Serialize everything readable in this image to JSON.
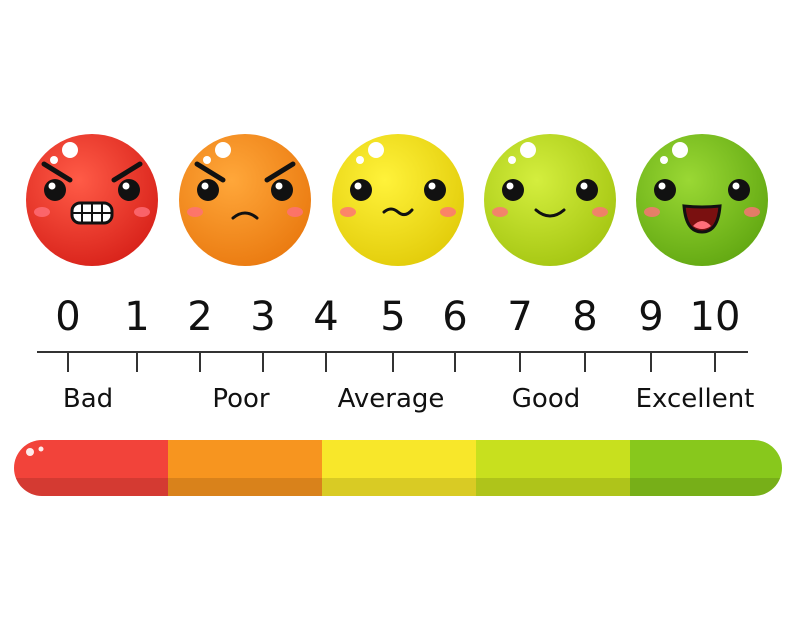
{
  "scale": {
    "numbers": [
      0,
      1,
      2,
      3,
      4,
      5,
      6,
      7,
      8,
      9,
      10
    ],
    "labels": [
      "Bad",
      "Poor",
      "Average",
      "Good",
      "Excellent"
    ]
  }
}
